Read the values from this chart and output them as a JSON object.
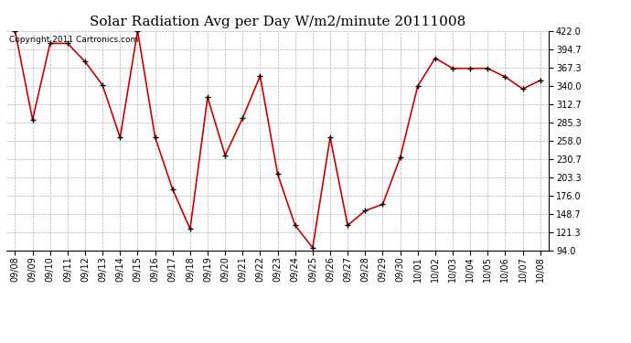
{
  "title": "Solar Radiation Avg per Day W/m2/minute 20111008",
  "copyright": "Copyright 2011 Cartronics.com",
  "dates": [
    "09/08",
    "09/09",
    "09/10",
    "09/11",
    "09/12",
    "09/13",
    "09/14",
    "09/15",
    "09/16",
    "09/17",
    "09/18",
    "09/19",
    "09/20",
    "09/21",
    "09/22",
    "09/23",
    "09/24",
    "09/25",
    "09/26",
    "09/27",
    "09/28",
    "09/29",
    "09/30",
    "10/01",
    "10/02",
    "10/03",
    "10/04",
    "10/05",
    "10/06",
    "10/07",
    "10/08"
  ],
  "values": [
    422.0,
    289.3,
    403.3,
    403.3,
    376.0,
    340.7,
    262.7,
    422.0,
    263.0,
    185.3,
    126.0,
    322.7,
    236.0,
    291.7,
    354.7,
    208.0,
    131.3,
    98.0,
    262.7,
    131.3,
    153.3,
    162.7,
    232.7,
    339.3,
    381.3,
    366.0,
    366.0,
    366.0,
    353.3,
    335.3,
    348.0
  ],
  "ymin": 94.0,
  "ymax": 422.0,
  "yticks": [
    94.0,
    121.3,
    148.7,
    176.0,
    203.3,
    230.7,
    258.0,
    285.3,
    312.7,
    340.0,
    367.3,
    394.7,
    422.0
  ],
  "line_color": "#cc0000",
  "marker_color": "#000000",
  "bg_color": "#ffffff",
  "grid_color": "#b0b0b0",
  "title_fontsize": 11,
  "tick_fontsize": 7,
  "copyright_fontsize": 6.5
}
